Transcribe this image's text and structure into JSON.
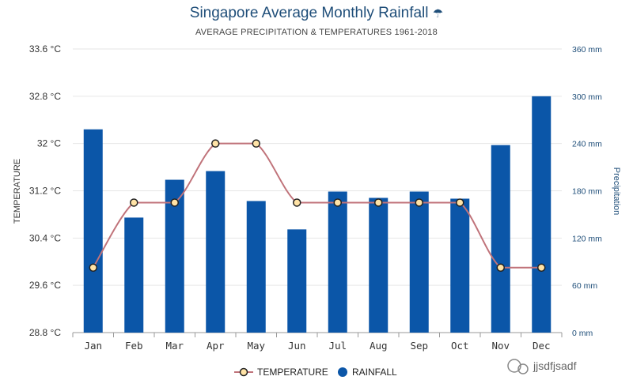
{
  "chart_data": {
    "type": "bar",
    "title": "Singapore Average Monthly Rainfall",
    "title_icon": "umbrella-icon",
    "subtitle": "AVERAGE PRECIPITATION & TEMPERATURES 1961-2018",
    "categories": [
      "Jan",
      "Feb",
      "Mar",
      "Apr",
      "May",
      "Jun",
      "Jul",
      "Aug",
      "Sep",
      "Oct",
      "Nov",
      "Dec"
    ],
    "series": [
      {
        "name": "RAINFALL",
        "type": "bar",
        "axis": "right",
        "color": "#0b56a8",
        "values": [
          258,
          146,
          194,
          205,
          167,
          131,
          179,
          171,
          179,
          170,
          238,
          300
        ]
      },
      {
        "name": "TEMPERATURE",
        "type": "line",
        "axis": "left",
        "color": "#c0737a",
        "marker_fill": "#ffe3a6",
        "values": [
          29.9,
          31.0,
          31.0,
          32.0,
          32.0,
          31.0,
          31.0,
          31.0,
          31.0,
          31.0,
          29.9,
          29.9
        ]
      }
    ],
    "y_left": {
      "label": "TEMPERATURE",
      "range": [
        28.8,
        33.6
      ],
      "ticks": [
        "33.6 °C",
        "32.8 °C",
        "32 °C",
        "31.2 °C",
        "30.4 °C",
        "29.6 °C",
        "28.8 °C"
      ]
    },
    "y_right": {
      "label": "Precipitation",
      "range": [
        0,
        360
      ],
      "ticks": [
        "360 mm",
        "300 mm",
        "240 mm",
        "180 mm",
        "120 mm",
        "60 mm",
        "0 mm"
      ]
    },
    "grid": true,
    "legend": {
      "placement": "bottom-center",
      "items": [
        "TEMPERATURE",
        "RAINFALL"
      ]
    },
    "watermark": "jjsdfjsadf"
  }
}
